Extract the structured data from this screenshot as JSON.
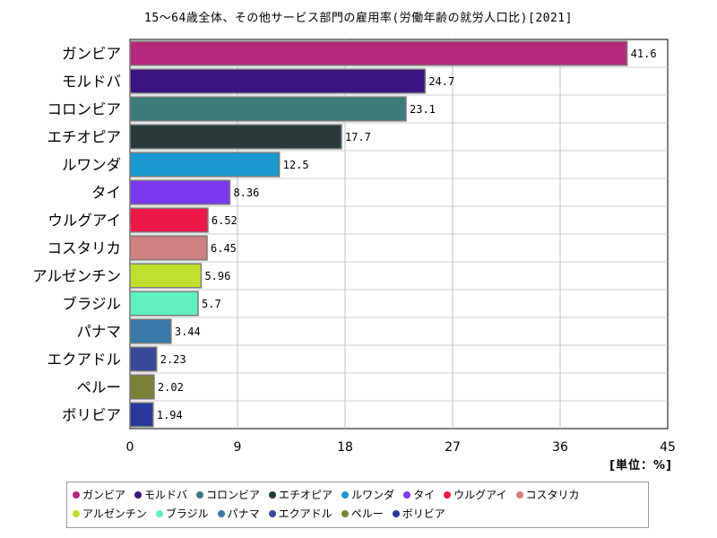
{
  "chart_data": {
    "type": "bar",
    "orientation": "horizontal",
    "title": "15〜64歳全体、その他サービス部門の雇用率(労働年齢の就労人口比)[2021]",
    "unit_label": "[単位：%]",
    "xlim": [
      0,
      45
    ],
    "xticks": [
      0,
      9,
      18,
      27,
      36,
      45
    ],
    "grid": true,
    "legend_position": "bottom",
    "categories": [
      "ガンビア",
      "モルドバ",
      "コロンビア",
      "エチオピア",
      "ルワンダ",
      "タイ",
      "ウルグアイ",
      "コスタリカ",
      "アルゼンチン",
      "ブラジル",
      "パナマ",
      "エクアドル",
      "ペルー",
      "ボリビア"
    ],
    "values": [
      41.6,
      24.7,
      23.1,
      17.7,
      12.5,
      8.36,
      6.52,
      6.45,
      5.96,
      5.7,
      3.44,
      2.23,
      2.02,
      1.94
    ],
    "value_labels": [
      "41.6",
      "24.7",
      "23.1",
      "17.7",
      "12.5",
      "8.36",
      "6.52",
      "6.45",
      "5.96",
      "5.7",
      "3.44",
      "2.23",
      "2.02",
      "1.94"
    ],
    "colors": [
      "#b5297a",
      "#3a1480",
      "#3d7a7a",
      "#2a3a3a",
      "#1a9ad0",
      "#7a3af0",
      "#ee1848",
      "#d08080",
      "#c0e030",
      "#60f0c0",
      "#3a78a8",
      "#3a4898",
      "#7a8038",
      "#283898"
    ]
  }
}
